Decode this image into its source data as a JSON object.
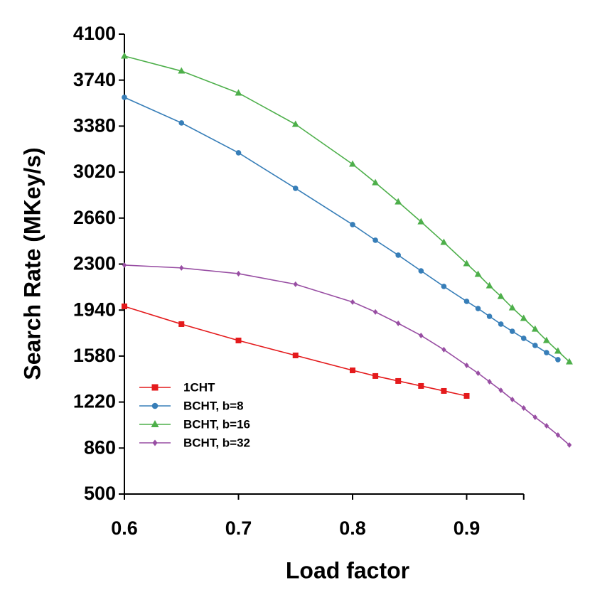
{
  "chart_data": {
    "type": "line",
    "x_label": "Load factor",
    "y_label": "Search Rate (MKey/s)",
    "xlim": [
      0.6,
      0.95
    ],
    "xticks": [
      0.6,
      0.7,
      0.8,
      0.9
    ],
    "ylim": [
      500,
      4100
    ],
    "yticks": [
      500,
      860,
      1220,
      1580,
      1940,
      2300,
      2660,
      3020,
      3380,
      3740,
      4100
    ],
    "series": [
      {
        "name": "1CHT",
        "color": "#e41a1c",
        "marker": "square",
        "x": [
          0.6,
          0.65,
          0.7,
          0.75,
          0.8,
          0.82,
          0.84,
          0.86,
          0.88,
          0.9
        ],
        "values": [
          1969,
          1830,
          1702,
          1585,
          1468,
          1424,
          1385,
          1346,
          1307,
          1268
        ]
      },
      {
        "name": "BCHT, b=8",
        "color": "#377eb8",
        "marker": "circle",
        "x": [
          0.6,
          0.65,
          0.7,
          0.75,
          0.8,
          0.82,
          0.84,
          0.86,
          0.88,
          0.9,
          0.91,
          0.92,
          0.93,
          0.94,
          0.95,
          0.96,
          0.97,
          0.98
        ],
        "values": [
          3605,
          3405,
          3171,
          2893,
          2609,
          2487,
          2370,
          2247,
          2125,
          2008,
          1952,
          1891,
          1830,
          1774,
          1719,
          1663,
          1607,
          1552
        ]
      },
      {
        "name": "BCHT, b=16",
        "color": "#4daf4a",
        "marker": "triangle",
        "x": [
          0.6,
          0.65,
          0.7,
          0.75,
          0.8,
          0.82,
          0.84,
          0.86,
          0.88,
          0.9,
          0.91,
          0.92,
          0.93,
          0.94,
          0.95,
          0.96,
          0.97,
          0.98,
          0.99
        ],
        "values": [
          3928,
          3811,
          3639,
          3394,
          3082,
          2937,
          2787,
          2631,
          2470,
          2303,
          2220,
          2130,
          2047,
          1958,
          1875,
          1791,
          1702,
          1619,
          1535
        ]
      },
      {
        "name": "BCHT, b=32",
        "color": "#984ea3",
        "marker": "diamond",
        "x": [
          0.6,
          0.65,
          0.7,
          0.75,
          0.8,
          0.82,
          0.84,
          0.86,
          0.88,
          0.9,
          0.91,
          0.92,
          0.93,
          0.94,
          0.95,
          0.96,
          0.97,
          0.98,
          0.99
        ],
        "values": [
          2292,
          2270,
          2225,
          2142,
          2003,
          1925,
          1836,
          1741,
          1630,
          1507,
          1446,
          1379,
          1312,
          1240,
          1173,
          1101,
          1034,
          962,
          884
        ]
      }
    ]
  }
}
